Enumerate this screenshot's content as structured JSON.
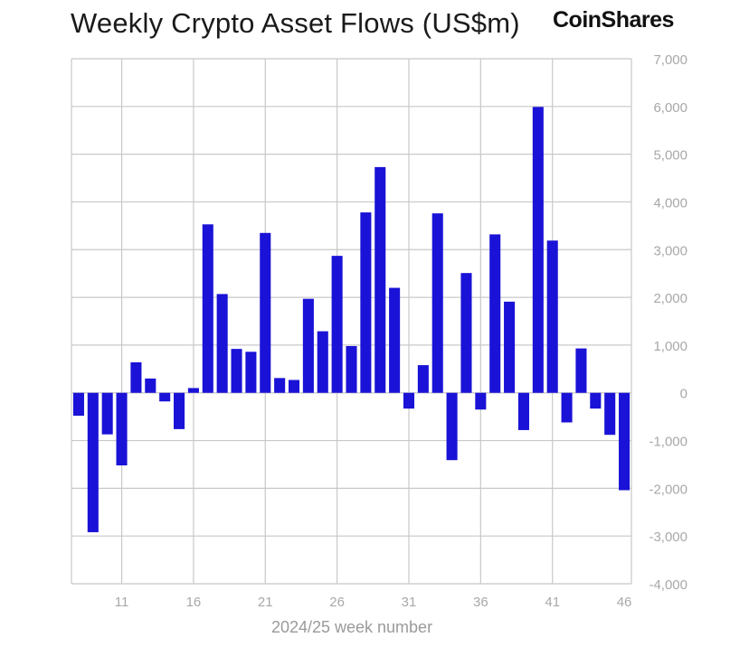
{
  "header": {
    "title": "Weekly Crypto Asset Flows (US$m)",
    "logo": "CoinShares"
  },
  "colors": {
    "bar": "#1a12d6",
    "grid": "#c8c8c8",
    "tick_text": "#a8a8a8",
    "xlabel_text": "#9a9a9a"
  },
  "chart_data": {
    "type": "bar",
    "title": "Weekly Crypto Asset Flows (US$m)",
    "xlabel": "2024/25 week number",
    "ylabel": "",
    "ylim": [
      -4000,
      7000
    ],
    "yticks": [
      7000,
      6000,
      5000,
      4000,
      3000,
      2000,
      1000,
      0,
      -1000,
      -2000,
      -3000,
      -4000
    ],
    "ytick_labels": [
      "7,000",
      "6,000",
      "5,000",
      "4,000",
      "3,000",
      "2,000",
      "1,000",
      "0",
      "-1,000",
      "-2,000",
      "-3,000",
      "-4,000"
    ],
    "xtick_labels": [
      "11",
      "16",
      "21",
      "26",
      "31",
      "36",
      "41",
      "46"
    ],
    "grid": true,
    "categories": [
      8,
      9,
      10,
      11,
      12,
      13,
      14,
      15,
      16,
      17,
      18,
      19,
      20,
      21,
      22,
      23,
      24,
      25,
      26,
      27,
      28,
      29,
      30,
      31,
      32,
      33,
      34,
      35,
      36,
      37,
      38,
      39,
      40,
      41,
      42,
      43,
      44,
      45,
      46
    ],
    "values": [
      -480,
      -2920,
      -870,
      -1520,
      640,
      300,
      -180,
      -760,
      100,
      3530,
      2070,
      920,
      860,
      3350,
      310,
      270,
      1970,
      1290,
      2870,
      980,
      3780,
      4730,
      2200,
      -330,
      580,
      3760,
      -1410,
      2510,
      -350,
      3320,
      1910,
      -780,
      5990,
      3190,
      -620,
      930,
      -330,
      -880,
      -2040
    ]
  }
}
